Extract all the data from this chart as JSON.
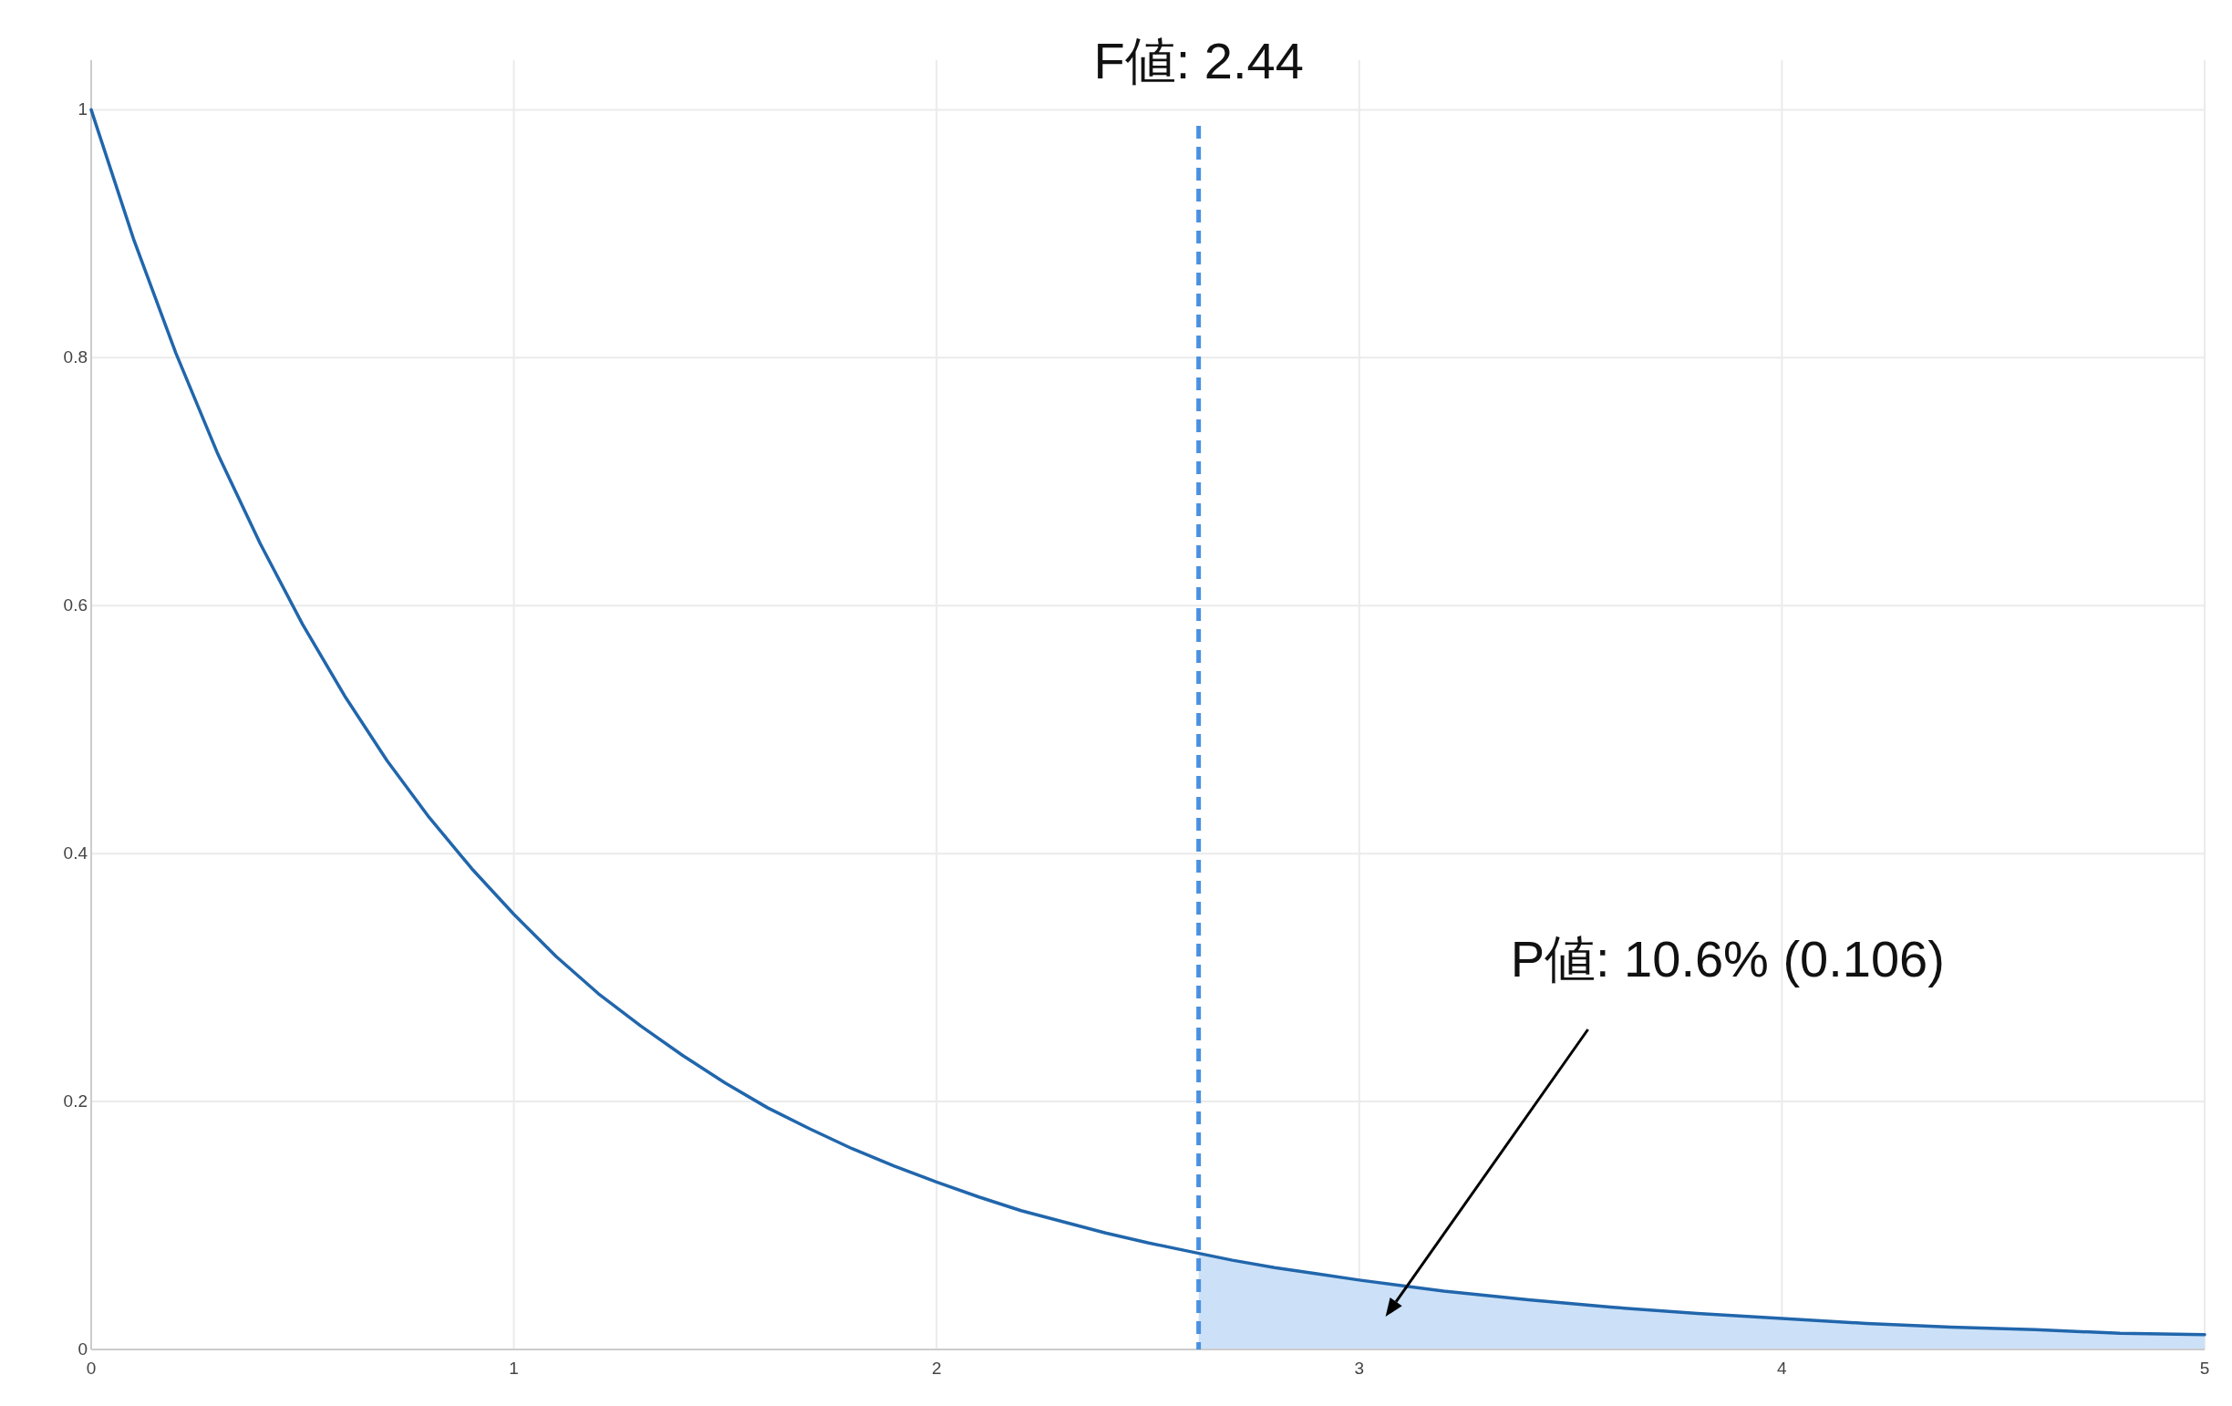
{
  "chart_data": {
    "type": "line",
    "x": [
      0,
      0.1,
      0.2,
      0.3,
      0.4,
      0.5,
      0.6,
      0.7,
      0.8,
      0.9,
      1,
      1.1,
      1.2,
      1.3,
      1.4,
      1.5,
      1.6,
      1.7,
      1.8,
      1.9,
      2,
      2.1,
      2.2,
      2.3,
      2.4,
      2.5,
      2.6,
      2.7,
      2.8,
      2.9,
      3,
      3.2,
      3.4,
      3.6,
      3.8,
      4,
      4.2,
      4.4,
      4.6,
      4.8,
      5
    ],
    "series": [
      {
        "type": "area",
        "color": "#cce1f8",
        "x": [
          2.62,
          2.7,
          2.8,
          2.9,
          3,
          3.2,
          3.4,
          3.6,
          3.8,
          4,
          4.2,
          4.4,
          4.6,
          4.8,
          5
        ],
        "values": [
          0.077,
          0.072,
          0.066,
          0.061,
          0.056,
          0.047,
          0.04,
          0.034,
          0.029,
          0.025,
          0.021,
          0.018,
          0.016,
          0.013,
          0.012
        ]
      },
      {
        "color": "#2166ac",
        "values": [
          1,
          0.896,
          0.804,
          0.722,
          0.65,
          0.585,
          0.527,
          0.475,
          0.429,
          0.388,
          0.351,
          0.317,
          0.287,
          0.261,
          0.237,
          0.215,
          0.195,
          0.178,
          0.162,
          0.148,
          0.135,
          0.123,
          0.112,
          0.103,
          0.094,
          0.086,
          0.079,
          0.072,
          0.066,
          0.061,
          0.056,
          0.047,
          0.04,
          0.034,
          0.029,
          0.025,
          0.021,
          0.018,
          0.016,
          0.013,
          0.012
        ]
      }
    ],
    "xlim": [
      0,
      5
    ],
    "ylim": [
      0,
      1.04
    ],
    "xticks": [
      0,
      1,
      2,
      3,
      4,
      5
    ],
    "yticks": [
      0,
      0.2,
      0.4,
      0.6,
      0.8,
      1
    ],
    "grid": true,
    "ref_lines": [
      {
        "axis": "x",
        "value": 2.62,
        "color": "#4a90e2",
        "line_style": "dashed"
      }
    ],
    "annotations": [
      "F値: 2.44",
      "P値: 10.6% (0.106)"
    ]
  }
}
